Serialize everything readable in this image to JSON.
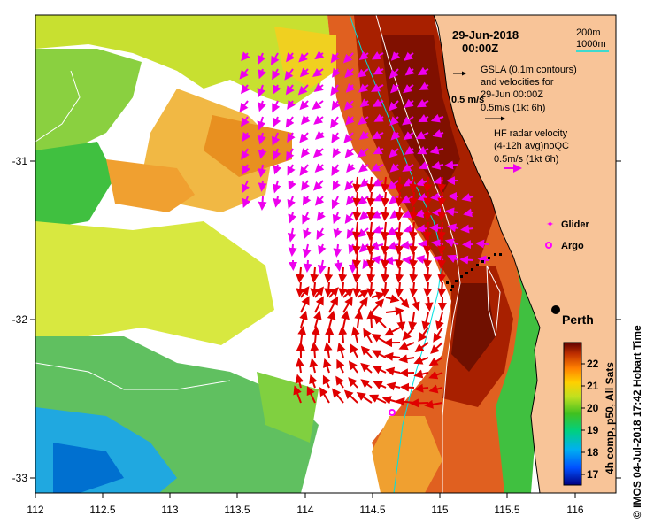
{
  "map": {
    "date": "29-Jun-2018",
    "time": "00:00Z",
    "depth_legend": [
      {
        "label": "200m",
        "color": "#ffffff"
      },
      {
        "label": "1000m",
        "color": "#00e0e0"
      }
    ],
    "gsla_text": [
      "GSLA (0.1m contours)",
      "and velocities for",
      "29-Jun 00:00Z",
      "0.5m/s (1kt 6h)"
    ],
    "gsla_scale_label": "0.5 m/s",
    "hf_text": [
      "HF radar velocity",
      "(4-12h avg)noQC",
      "0.5m/s (1kt 6h)"
    ],
    "glider_label": "Glider",
    "argo_label": "Argo",
    "city_label": "Perth",
    "colorbar": {
      "title": "4h comp, p50, All Sats",
      "ticks": [
        "17",
        "18",
        "19",
        "20",
        "21",
        "22"
      ]
    },
    "credit": "© IMOS 04-Jul-2018 17:42 Hobart Time",
    "x_ticks": [
      "112",
      "112.5",
      "113",
      "113.5",
      "114",
      "114.5",
      "115",
      "115.5",
      "116"
    ],
    "y_ticks": [
      "-31",
      "-32",
      "-33"
    ],
    "colors": {
      "land": "#f8c498",
      "gsla_arrow": "#000000",
      "hf_arrow": "#ee00ee",
      "current_arrow": "#e00000",
      "glider": "#ff00ff",
      "argo": "#ff00ff"
    }
  }
}
